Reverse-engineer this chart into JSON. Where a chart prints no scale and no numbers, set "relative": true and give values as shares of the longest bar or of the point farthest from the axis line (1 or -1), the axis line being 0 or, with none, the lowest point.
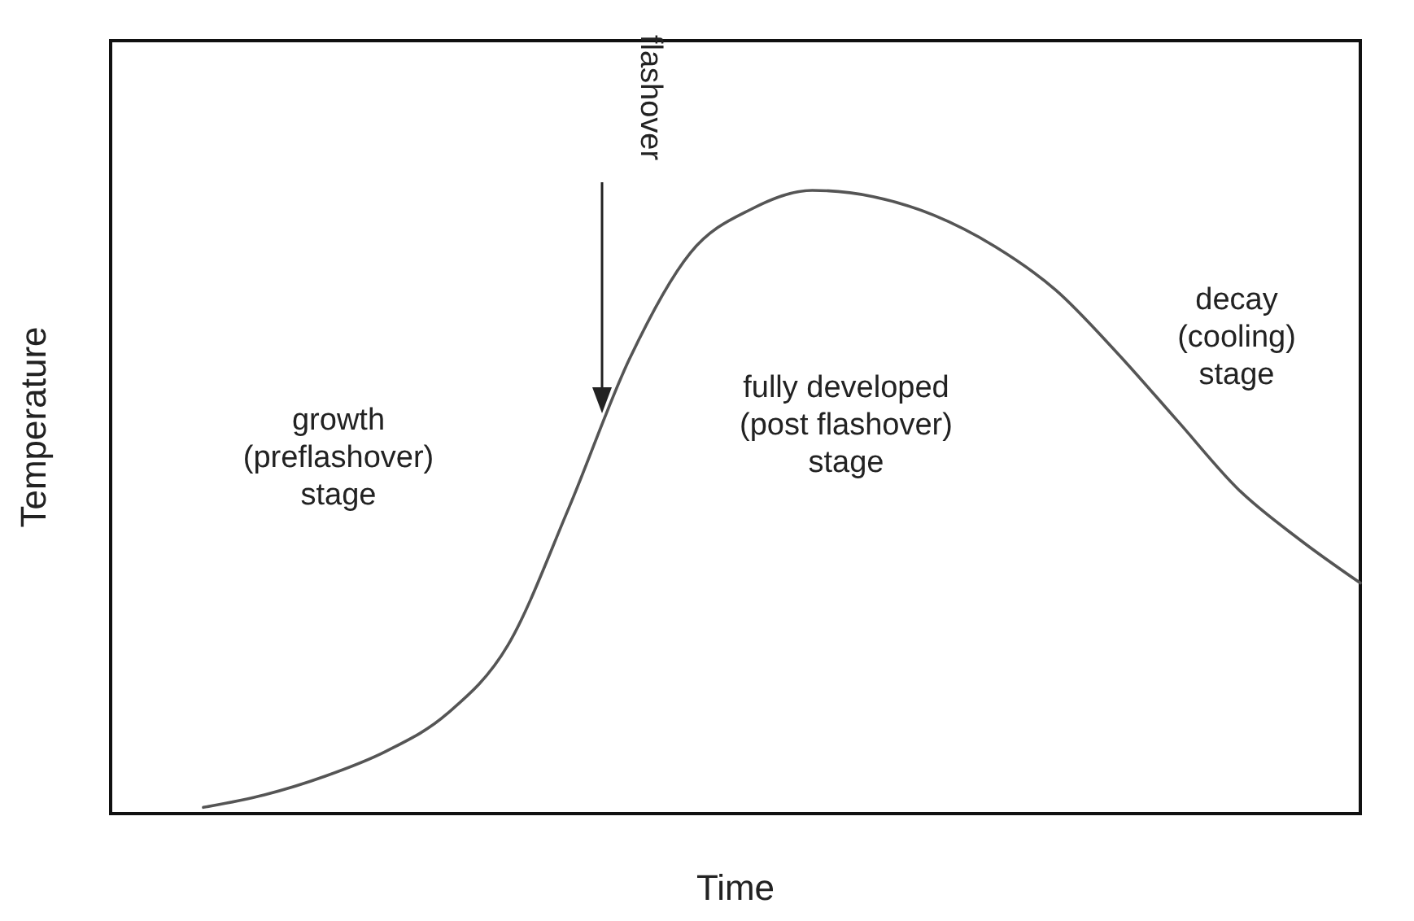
{
  "chart_data": {
    "type": "line",
    "relative": true,
    "xlabel": "Time",
    "ylabel": "Temperature",
    "color": "#555555",
    "categories": [
      null,
      null,
      null,
      null,
      null,
      null,
      null,
      null,
      null,
      null,
      null,
      null,
      null,
      null,
      null,
      null,
      null,
      null,
      null,
      null
    ],
    "values": [
      0.01,
      0.03,
      0.06,
      0.1,
      0.16,
      0.27,
      0.49,
      0.73,
      0.9,
      0.97,
      1,
      0.99,
      0.96,
      0.91,
      0.84,
      0.74,
      0.63,
      0.52,
      0.44,
      0.37
    ],
    "annotations": [
      "flashover",
      "growth\n(preflashover)\nstage",
      "fully developed\n(post flashover)\nstage",
      "decay\n(cooling)\nstage"
    ]
  }
}
